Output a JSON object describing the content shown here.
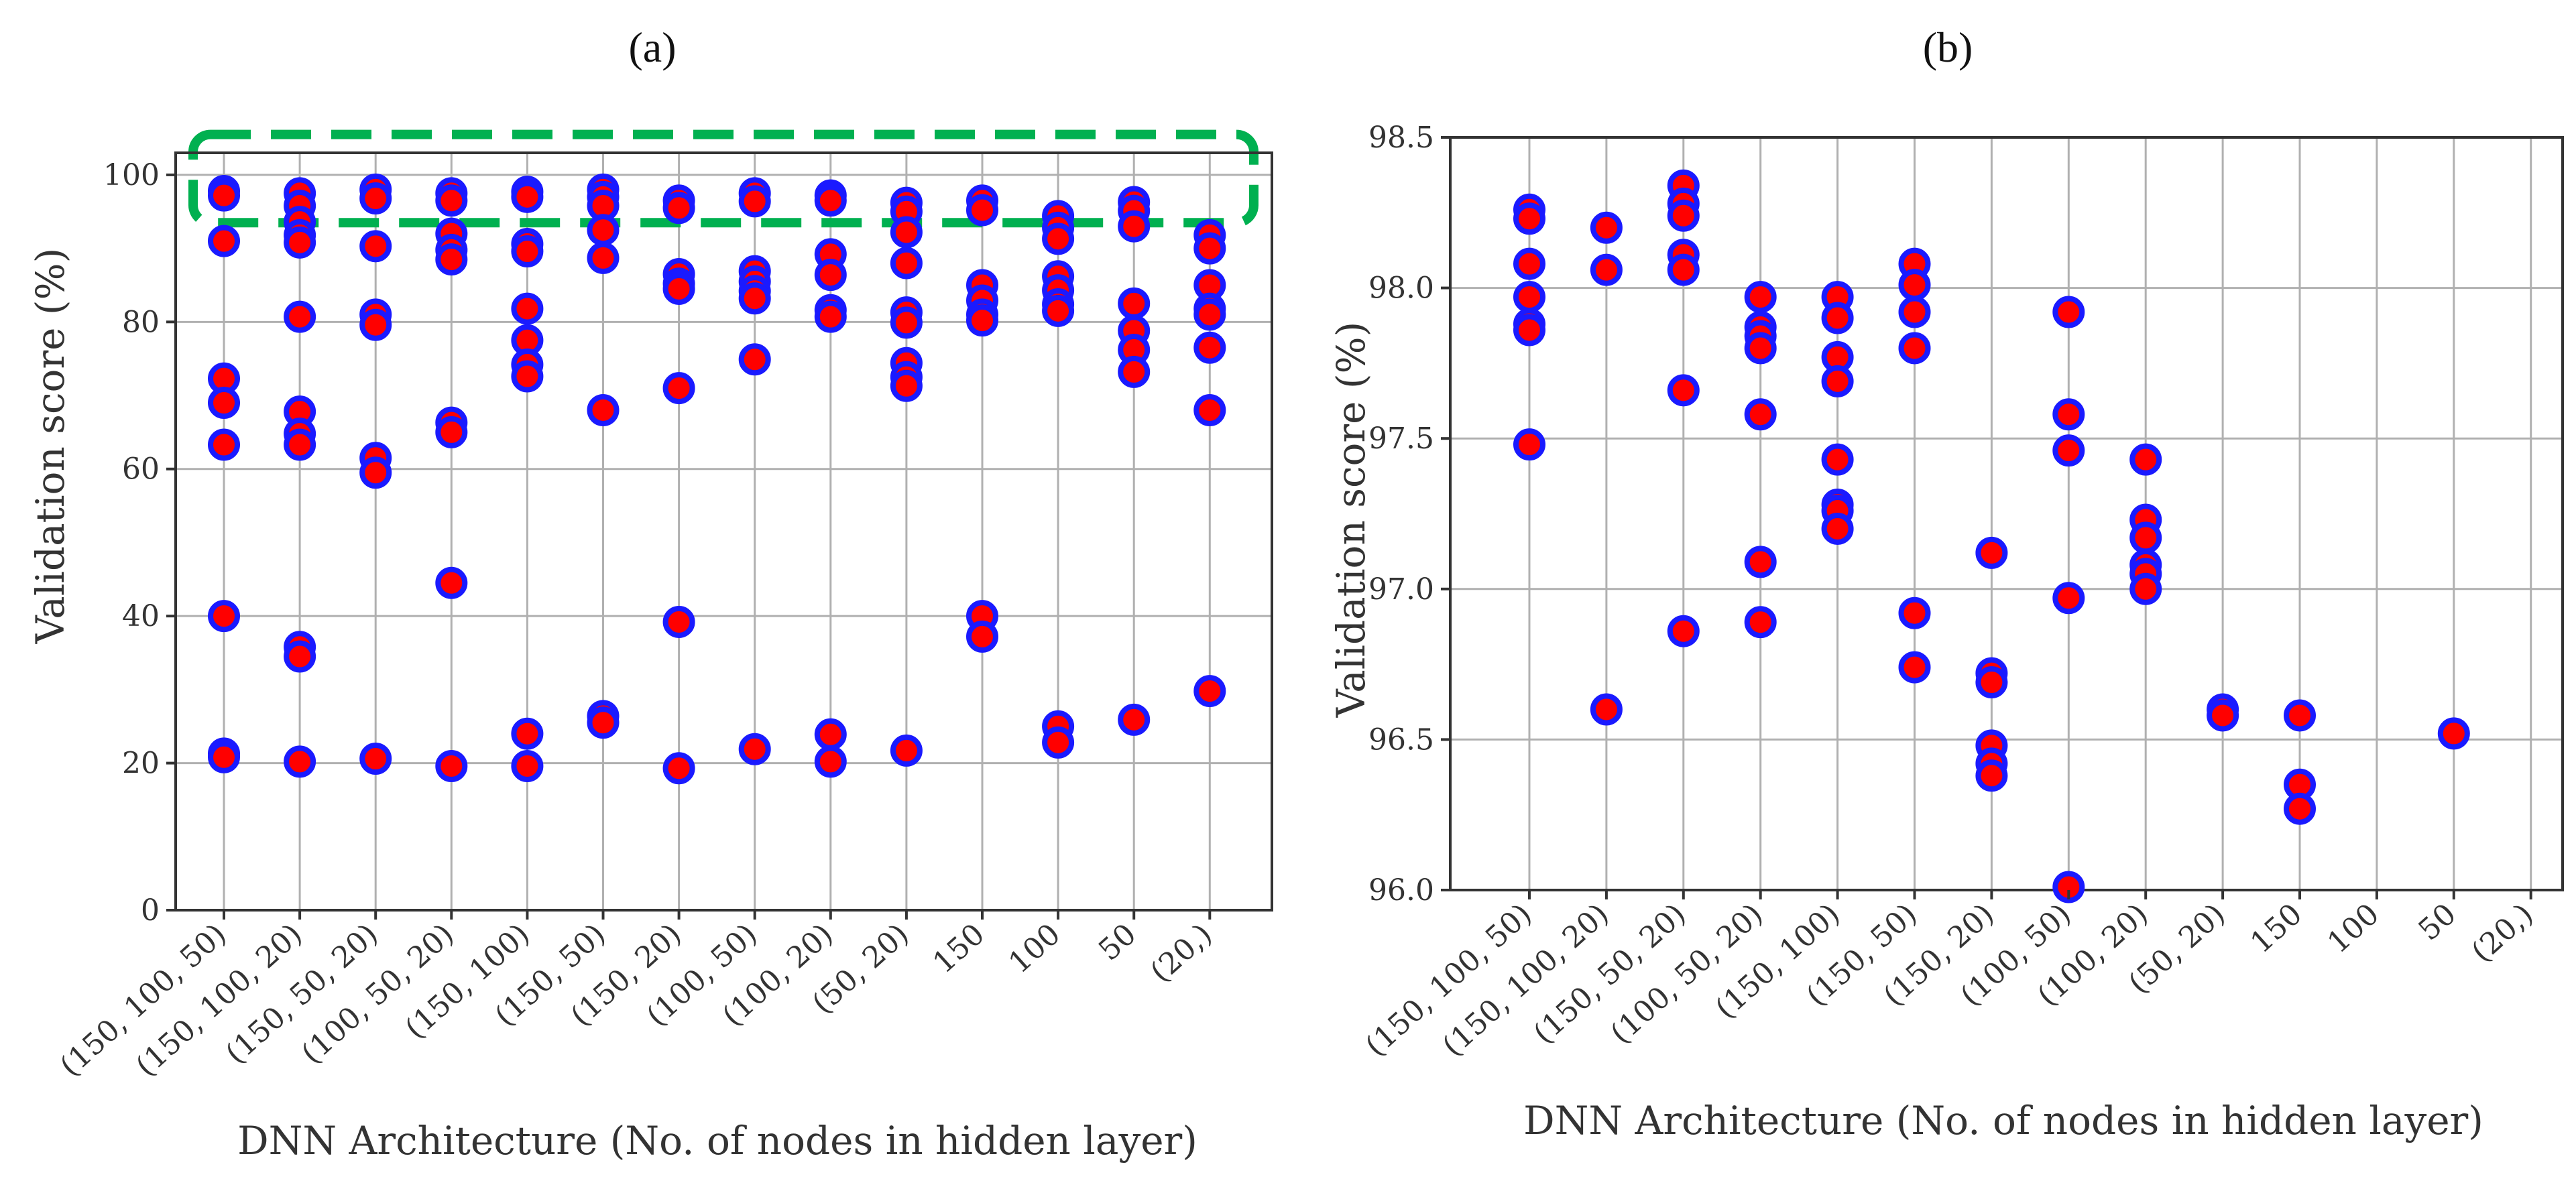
{
  "chart_data": [
    {
      "type": "scatter",
      "panel_label": "(a)",
      "xlabel": "DNN Architecture (No. of nodes in hidden layer)",
      "ylabel": "Validation score (%)",
      "categories": [
        "(150, 100, 50)",
        "(150, 100, 20)",
        "(150, 50, 20)",
        "(100, 50, 20)",
        "(150, 100)",
        "(150, 50)",
        "(150, 20)",
        "(100, 50)",
        "(100, 20)",
        "(50, 20)",
        "150",
        "100",
        "50",
        "(20,)"
      ],
      "ylim": [
        0,
        103
      ],
      "yticks": [
        0,
        20,
        40,
        60,
        80,
        100
      ],
      "grid": true,
      "highlight": "dashed green box around the scores near 95-98%",
      "highlight_range": [
        93.5,
        105.5
      ],
      "points": [
        [
          97.8,
          97.2,
          91.0,
          72.3,
          69.0,
          63.3,
          40.0,
          21.3,
          20.8
        ],
        [
          97.5,
          95.8,
          93.6,
          91.8,
          90.8,
          80.7,
          67.8,
          64.8,
          63.3,
          35.8,
          34.5,
          20.2
        ],
        [
          98.0,
          96.8,
          90.3,
          81.0,
          79.6,
          61.5,
          59.5,
          20.6
        ],
        [
          97.5,
          96.5,
          92.0,
          89.8,
          88.5,
          66.3,
          65.0,
          44.5,
          19.6
        ],
        [
          97.7,
          97.0,
          90.6,
          89.6,
          81.8,
          77.5,
          74.2,
          72.6,
          24.0,
          19.6
        ],
        [
          98.0,
          97.0,
          95.8,
          92.5,
          88.7,
          68.0,
          26.4,
          25.5
        ],
        [
          96.5,
          95.5,
          86.5,
          85.2,
          84.5,
          71.0,
          39.2,
          19.3
        ],
        [
          97.5,
          96.4,
          86.9,
          85.5,
          84.2,
          83.2,
          74.9,
          21.9
        ],
        [
          97.2,
          96.5,
          89.2,
          86.4,
          81.6,
          80.7,
          23.9,
          20.2
        ],
        [
          96.2,
          95.0,
          92.2,
          88.0,
          81.3,
          79.9,
          74.4,
          72.5,
          71.3,
          21.7
        ],
        [
          96.5,
          95.2,
          85.0,
          82.9,
          81.0,
          80.2,
          40.0,
          37.2
        ],
        [
          94.4,
          92.8,
          91.3,
          86.2,
          84.3,
          82.4,
          81.5,
          25.0,
          22.8
        ],
        [
          96.3,
          95.1,
          93.0,
          82.5,
          78.8,
          76.2,
          73.2,
          25.9
        ],
        [
          91.8,
          90.0,
          85.0,
          81.8,
          81.0,
          76.5,
          68.0,
          29.8
        ]
      ]
    },
    {
      "type": "scatter",
      "panel_label": "(b)",
      "xlabel": "DNN Architecture (No. of nodes in hidden layer)",
      "ylabel": "Validation score (%)",
      "categories": [
        "(150, 100, 50)",
        "(150, 100, 20)",
        "(150, 50, 20)",
        "(100, 50, 20)",
        "(150, 100)",
        "(150, 50)",
        "(150, 20)",
        "(100, 50)",
        "(100, 20)",
        "(50, 20)",
        "150",
        "100",
        "50",
        "(20,)"
      ],
      "ylim": [
        96.0,
        98.5
      ],
      "yticks": [
        96.0,
        96.5,
        97.0,
        97.5,
        98.0,
        98.5
      ],
      "ytick_labels": [
        "96.0",
        "96.5",
        "97.0",
        "97.5",
        "98.0",
        "98.5"
      ],
      "grid": true,
      "points": [
        [
          98.26,
          98.23,
          98.08,
          97.97,
          97.88,
          97.86,
          97.48
        ],
        [
          98.2,
          98.06,
          96.6
        ],
        [
          98.34,
          98.28,
          98.24,
          98.11,
          98.06,
          97.66,
          96.86
        ],
        [
          97.97,
          97.87,
          97.84,
          97.8,
          97.58,
          97.09,
          96.89
        ],
        [
          97.97,
          97.9,
          97.77,
          97.69,
          97.43,
          97.28,
          97.26,
          97.2
        ],
        [
          98.08,
          98.01,
          97.92,
          97.8,
          96.92,
          96.74
        ],
        [
          97.12,
          96.72,
          96.69,
          96.48,
          96.42,
          96.38
        ],
        [
          97.92,
          97.58,
          97.46,
          96.97,
          96.01
        ],
        [
          97.43,
          97.23,
          97.17,
          97.08,
          97.05,
          97.0
        ],
        [
          96.6,
          96.58
        ],
        [
          96.58,
          96.35,
          96.27
        ],
        [],
        [
          96.52
        ],
        []
      ]
    }
  ]
}
